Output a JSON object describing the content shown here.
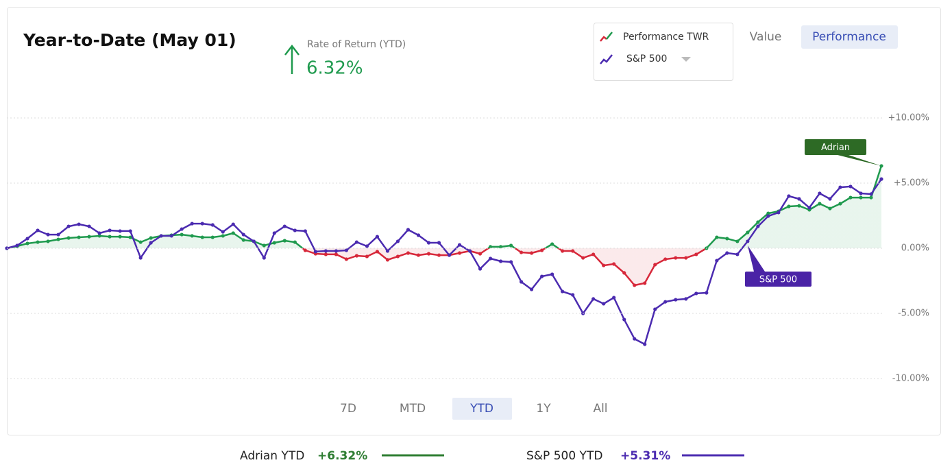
{
  "chart_data": {
    "type": "line",
    "title": "Year-to-Date (May 01)",
    "headline": {
      "label": "Rate of Return (YTD)",
      "value": "6.32%"
    },
    "views": [
      "Value",
      "Performance"
    ],
    "active_view": 1,
    "ranges": [
      "7D",
      "MTD",
      "YTD",
      "1Y",
      "All"
    ],
    "active_range": 2,
    "ylim": [
      -10,
      10
    ],
    "yticks": [
      {
        "value": 10,
        "label": "+10.00%"
      },
      {
        "value": 5,
        "label": "+5.00%"
      },
      {
        "value": 0,
        "label": "0.00%"
      },
      {
        "value": -5,
        "label": "-5.00%"
      },
      {
        "value": -10,
        "label": "-10.00%"
      }
    ],
    "grid": true,
    "legend": "top-right",
    "series": [
      {
        "name": "Performance TWR",
        "color": "#1f9a4e",
        "negative_color": "#d7283a",
        "values": [
          0,
          0.16,
          0.37,
          0.47,
          0.53,
          0.68,
          0.79,
          0.84,
          0.89,
          0.95,
          0.89,
          0.89,
          0.84,
          0.47,
          0.79,
          0.95,
          1.0,
          1.05,
          0.95,
          0.84,
          0.84,
          0.95,
          1.16,
          0.63,
          0.53,
          0.21,
          0.42,
          0.58,
          0.47,
          -0.16,
          -0.42,
          -0.47,
          -0.47,
          -0.84,
          -0.58,
          -0.63,
          -0.26,
          -0.89,
          -0.63,
          -0.37,
          -0.53,
          -0.42,
          -0.53,
          -0.53,
          -0.37,
          -0.21,
          -0.42,
          0.11,
          0.11,
          0.21,
          -0.32,
          -0.37,
          -0.16,
          0.32,
          -0.21,
          -0.21,
          -0.74,
          -0.47,
          -1.32,
          -1.21,
          -1.89,
          -2.84,
          -2.68,
          -1.26,
          -0.84,
          -0.74,
          -0.74,
          -0.47,
          0,
          0.84,
          0.74,
          0.53,
          1.21,
          2.0,
          2.68,
          2.84,
          3.21,
          3.26,
          2.95,
          3.42,
          3.05,
          3.42,
          3.89,
          3.89,
          3.89,
          6.32
        ]
      },
      {
        "name": "S&P 500",
        "color": "#4b2bb0",
        "values": [
          0,
          0.21,
          0.74,
          1.37,
          1.05,
          1.05,
          1.68,
          1.84,
          1.68,
          1.16,
          1.37,
          1.32,
          1.32,
          -0.74,
          0.42,
          0.95,
          0.95,
          1.47,
          1.89,
          1.89,
          1.79,
          1.26,
          1.84,
          1.05,
          0.53,
          -0.74,
          1.16,
          1.68,
          1.37,
          1.32,
          -0.26,
          -0.21,
          -0.21,
          -0.16,
          0.47,
          0.16,
          0.89,
          -0.21,
          0.53,
          1.42,
          1.0,
          0.42,
          0.42,
          -0.53,
          0.26,
          -0.21,
          -1.58,
          -0.79,
          -1.0,
          -1.05,
          -2.58,
          -3.16,
          -2.16,
          -2.0,
          -3.32,
          -3.58,
          -5.0,
          -3.89,
          -4.26,
          -3.79,
          -5.47,
          -6.95,
          -7.37,
          -4.68,
          -4.11,
          -3.95,
          -3.89,
          -3.47,
          -3.42,
          -0.95,
          -0.37,
          -0.47,
          0.53,
          1.68,
          2.47,
          2.74,
          4.0,
          3.79,
          3.11,
          4.21,
          3.79,
          4.68,
          4.74,
          4.21,
          4.16,
          5.31
        ]
      }
    ],
    "annotations": [
      {
        "text": "Adrian",
        "series": 0,
        "color": "#2d6a25"
      },
      {
        "text": "S&P 500",
        "series": 1,
        "color": "#4a23a6"
      }
    ],
    "summary": [
      {
        "label": "Adrian YTD",
        "value": "+6.32%",
        "color": "#2e7d32"
      },
      {
        "label": "S&P 500 YTD",
        "value": "+5.31%",
        "color": "#4b2bb0"
      }
    ]
  }
}
